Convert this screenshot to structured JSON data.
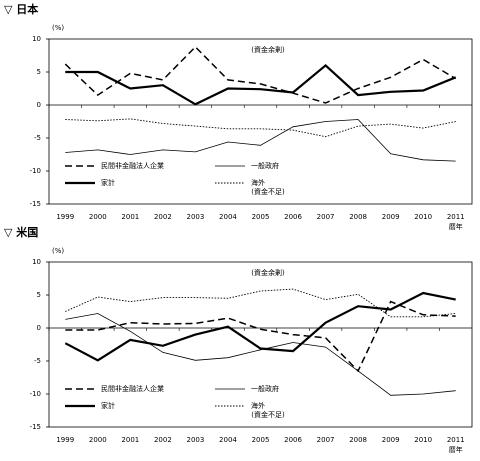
{
  "chart_data": [
    {
      "type": "line",
      "title": "▽ 日本",
      "unit": "(%)",
      "x_label": "暦年",
      "annotations": [
        "(資金余剰)",
        "(資金不足)"
      ],
      "categories": [
        "1999",
        "2000",
        "2001",
        "2002",
        "2003",
        "2004",
        "2005",
        "2006",
        "2007",
        "2008",
        "2009",
        "2010",
        "2011"
      ],
      "ylim": [
        -15,
        10
      ],
      "yticks": [
        -15,
        -10,
        -5,
        0,
        5,
        10
      ],
      "series": [
        {
          "name": "民間非金融法人企業",
          "color": "#000000",
          "style": "dashed",
          "values": [
            6.2,
            1.5,
            4.8,
            3.8,
            8.8,
            3.8,
            3.2,
            1.8,
            0.3,
            2.5,
            4.2,
            6.9,
            4.0
          ]
        },
        {
          "name": "一般政府",
          "color": "#000000",
          "style": "thin",
          "values": [
            -7.2,
            -6.8,
            -7.5,
            -6.8,
            -7.1,
            -5.6,
            -6.1,
            -3.3,
            -2.5,
            -2.2,
            -7.4,
            -8.3,
            -8.5
          ]
        },
        {
          "name": "家計",
          "color": "#000000",
          "style": "thick",
          "values": [
            5.0,
            5.0,
            2.5,
            3.0,
            0.1,
            2.5,
            2.4,
            1.9,
            6.0,
            1.5,
            2.0,
            2.2,
            4.2
          ]
        },
        {
          "name": "海外",
          "color": "#000000",
          "style": "dotted",
          "values": [
            -2.2,
            -2.4,
            -2.1,
            -2.8,
            -3.2,
            -3.6,
            -3.6,
            -3.8,
            -4.8,
            -3.2,
            -2.9,
            -3.5,
            -2.5
          ]
        }
      ]
    },
    {
      "type": "line",
      "title": "▽ 米国",
      "unit": "(%)",
      "x_label": "暦年",
      "annotations": [
        "(資金余剰)",
        "(資金不足)"
      ],
      "categories": [
        "1999",
        "2000",
        "2001",
        "2002",
        "2003",
        "2004",
        "2005",
        "2006",
        "2007",
        "2008",
        "2009",
        "2010",
        "2011"
      ],
      "ylim": [
        -15,
        10
      ],
      "yticks": [
        -15,
        -10,
        -5,
        0,
        5,
        10
      ],
      "series": [
        {
          "name": "民間非金融法人企業",
          "color": "#000000",
          "style": "dashed",
          "values": [
            -0.3,
            -0.3,
            0.8,
            0.6,
            0.7,
            1.5,
            -0.2,
            -1.0,
            -1.5,
            -6.5,
            4.0,
            2.0,
            1.8
          ]
        },
        {
          "name": "一般政府",
          "color": "#000000",
          "style": "thin",
          "values": [
            1.3,
            2.2,
            -0.5,
            -3.7,
            -4.9,
            -4.5,
            -3.3,
            -2.2,
            -2.9,
            -6.5,
            -10.2,
            -10.0,
            -9.5
          ]
        },
        {
          "name": "家計",
          "color": "#000000",
          "style": "thick",
          "values": [
            -2.3,
            -4.9,
            -1.8,
            -2.7,
            -1.0,
            0.2,
            -3.1,
            -3.5,
            0.8,
            3.3,
            2.8,
            5.3,
            4.3
          ]
        },
        {
          "name": "海外",
          "color": "#000000",
          "style": "dotted",
          "values": [
            2.5,
            4.7,
            4.0,
            4.6,
            4.6,
            4.5,
            5.6,
            5.9,
            4.3,
            5.1,
            1.7,
            1.7,
            2.2
          ]
        }
      ]
    }
  ]
}
